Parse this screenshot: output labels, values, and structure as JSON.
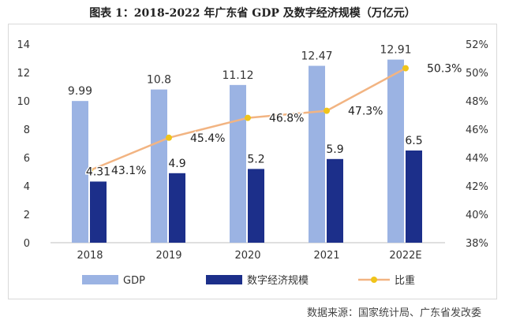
{
  "title": "图表 1：2018-2022 年广东省 GDP 及数字经济规模（万亿元）",
  "source": "数据来源：国家统计局、广东省发改委",
  "chart_data": {
    "type": "bar",
    "categories": [
      "2018",
      "2019",
      "2020",
      "2021",
      "2022E"
    ],
    "series": [
      {
        "name": "GDP",
        "type": "bar",
        "axis": "left",
        "color": "#9bb3e3",
        "values": [
          9.99,
          10.8,
          11.12,
          12.47,
          12.91
        ],
        "labels": [
          "9.99",
          "10.8",
          "11.12",
          "12.47",
          "12.91"
        ]
      },
      {
        "name": "数字经济规模",
        "type": "bar",
        "axis": "left",
        "color": "#1c2f8a",
        "values": [
          4.31,
          4.9,
          5.2,
          5.9,
          6.5
        ],
        "labels": [
          "4.31",
          "4.9",
          "5.2",
          "5.9",
          "6.5"
        ]
      },
      {
        "name": "比重",
        "type": "line",
        "axis": "right",
        "color": "#f2b482",
        "marker_color": "#f0c419",
        "values": [
          43.1,
          45.4,
          46.8,
          47.3,
          50.3
        ],
        "labels": [
          "43.1%",
          "45.4%",
          "46.8%",
          "47.3%",
          "50.3%"
        ]
      }
    ],
    "left_axis": {
      "min": 0,
      "max": 14,
      "ticks": [
        "0",
        "2",
        "4",
        "6",
        "8",
        "10",
        "12",
        "14"
      ]
    },
    "right_axis": {
      "min": 38,
      "max": 52,
      "ticks": [
        "38%",
        "40%",
        "42%",
        "44%",
        "46%",
        "48%",
        "50%",
        "52%"
      ]
    },
    "grid": false,
    "legend_position": "bottom"
  }
}
